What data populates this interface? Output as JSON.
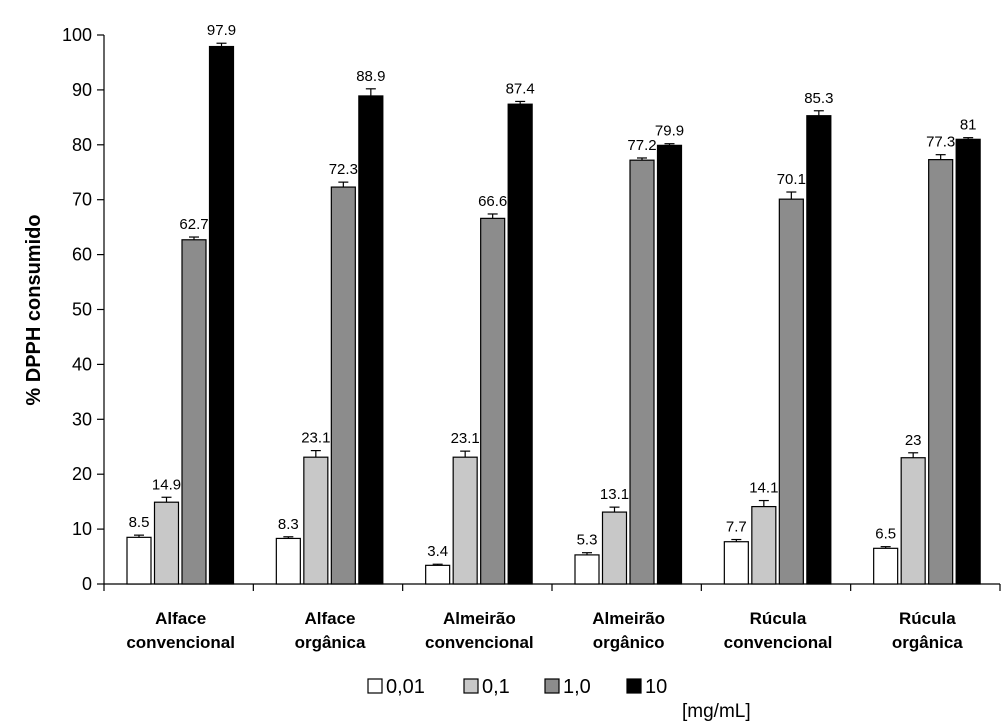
{
  "chart_data": {
    "type": "bar",
    "title": "",
    "ylabel": "% DPPH consumido",
    "xlabel": "",
    "ylim": [
      0,
      100
    ],
    "yticks": [
      0,
      10,
      20,
      30,
      40,
      50,
      60,
      70,
      80,
      90,
      100
    ],
    "grid": false,
    "legend_position": "bottom",
    "legend_unit": "[mg/mL]",
    "categories": [
      [
        "Alface",
        "convencional"
      ],
      [
        "Alface",
        "orgânica"
      ],
      [
        "Almeirão",
        "convencional"
      ],
      [
        "Almeirão",
        "orgânico"
      ],
      [
        "Rúcula",
        "convencional"
      ],
      [
        "Rúcula",
        "orgânica"
      ]
    ],
    "series": [
      {
        "name": "0,01",
        "color": "#ffffff",
        "values": [
          8.5,
          8.3,
          3.4,
          5.3,
          7.7,
          6.5
        ],
        "labels": [
          "8.5",
          "8.3",
          "3.4",
          "5.3",
          "7.7",
          "6.5"
        ],
        "errors": [
          0.4,
          0.3,
          0.2,
          0.4,
          0.4,
          0.3
        ]
      },
      {
        "name": "0,1",
        "color": "#c8c8c8",
        "values": [
          14.9,
          23.1,
          23.1,
          13.1,
          14.1,
          23
        ],
        "labels": [
          "14.9",
          "23.1",
          "23.1",
          "13.1",
          "14.1",
          "23"
        ],
        "errors": [
          0.9,
          1.2,
          1.1,
          0.9,
          1.1,
          0.9
        ]
      },
      {
        "name": "1,0",
        "color": "#8c8c8c",
        "values": [
          62.7,
          72.3,
          66.6,
          77.2,
          70.1,
          77.3
        ],
        "labels": [
          "62.7",
          "72.3",
          "66.6",
          "77.2",
          "70.1",
          "77.3"
        ],
        "errors": [
          0.5,
          0.9,
          0.8,
          0.4,
          1.3,
          0.9
        ]
      },
      {
        "name": "10",
        "color": "#000000",
        "values": [
          97.9,
          88.9,
          87.4,
          79.9,
          85.3,
          81
        ],
        "labels": [
          "97.9",
          "88.9",
          "87.4",
          "79.9",
          "85.3",
          "81"
        ],
        "errors": [
          0.6,
          1.3,
          0.5,
          0.3,
          0.9,
          0.3
        ]
      }
    ]
  }
}
